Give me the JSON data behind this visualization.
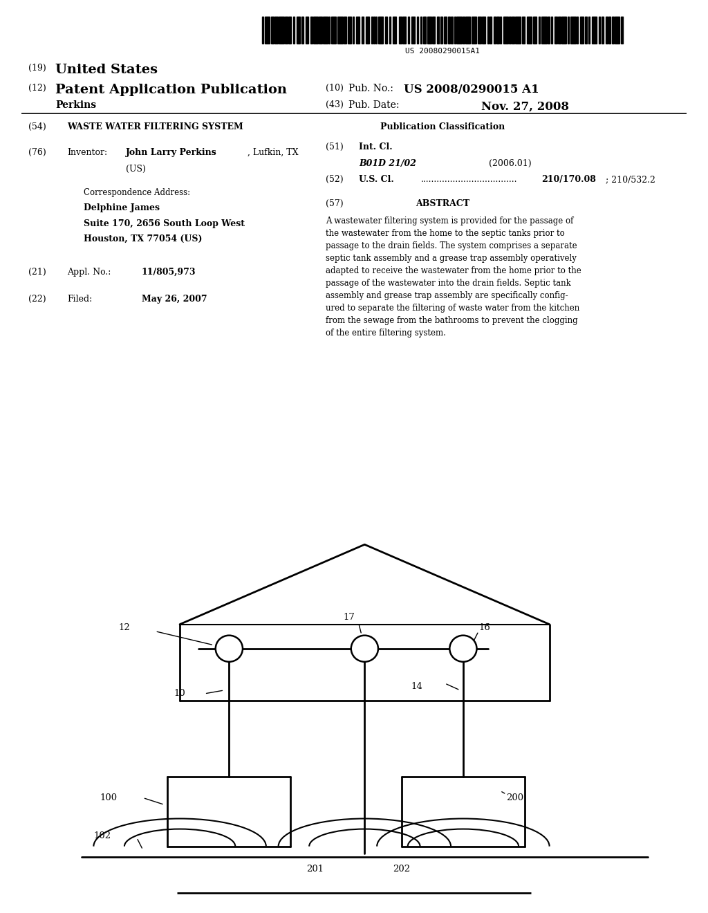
{
  "bg_color": "#ffffff",
  "barcode_text": "US 20080290015A1",
  "header": {
    "line19_num": "(19)",
    "line19_val": "United States",
    "line12_num": "(12)",
    "line12_val": "Patent Application Publication",
    "pub_no_num": "(10)",
    "pub_no_label": "Pub. No.:",
    "pub_no_val": "US 2008/0290015 A1",
    "perkins": "Perkins",
    "pub_date_num": "(43)",
    "pub_date_label": "Pub. Date:",
    "pub_date_val": "Nov. 27, 2008"
  },
  "left_col": {
    "title_num": "(54)",
    "title": "WASTE WATER FILTERING SYSTEM",
    "inv_num": "(76)",
    "inv_label": "Inventor:",
    "inv_name": "John Larry Perkins",
    "inv_loc": ", Lufkin, TX",
    "inv_country": "(US)",
    "corr_label": "Correspondence Address:",
    "corr_name": "Delphine James",
    "corr_addr1": "Suite 170, 2656 South Loop West",
    "corr_addr2": "Houston, TX 77054 (US)",
    "appl_num": "(21)",
    "appl_label": "Appl. No.:",
    "appl_val": "11/805,973",
    "filed_num": "(22)",
    "filed_label": "Filed:",
    "filed_val": "May 26, 2007"
  },
  "right_col": {
    "pub_class_label": "Publication Classification",
    "int_cl_num": "(51)",
    "int_cl_label": "Int. Cl.",
    "int_cl_val": "B01D 21/02",
    "int_cl_year": "(2006.01)",
    "us_cl_num": "(52)",
    "us_cl_label": "U.S. Cl.",
    "us_cl_dots": "....................................",
    "us_cl_val": "210/170.08",
    "us_cl_val2": "; 210/532.2",
    "abstract_num": "(57)",
    "abstract_label": "ABSTRACT",
    "abstract_text": "A wastewater filtering system is provided for the passage of\nthe wastewater from the home to the septic tanks prior to\npassage to the drain fields. The system comprises a separate\nseptic tank assembly and a grease trap assembly operatively\nadapted to receive the wastewater from the home prior to the\npassage of the wastewater into the drain fields. Septic tank\nassembly and grease trap assembly are specifically config-\nured to separate the filtering of waste water from the kitchen\nfrom the sewage from the bathrooms to prevent the clogging\nof the entire filtering system."
  }
}
